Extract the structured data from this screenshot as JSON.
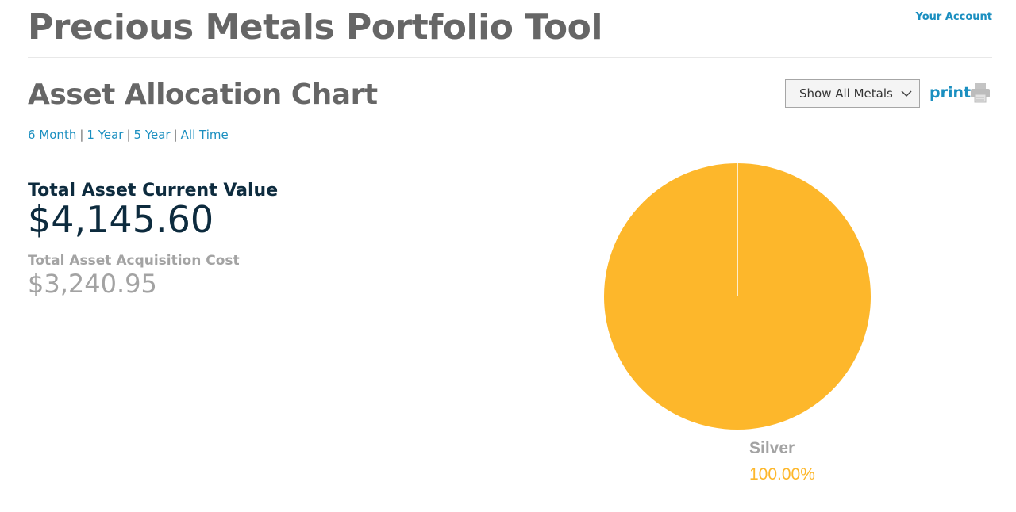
{
  "header": {
    "title": "Precious Metals Portfolio Tool",
    "account_link": "Your Account"
  },
  "section": {
    "title": "Asset Allocation Chart"
  },
  "time_ranges": [
    "6 Month",
    "1 Year",
    "5 Year",
    "All Time"
  ],
  "filter": {
    "selected": "Show All Metals"
  },
  "print": {
    "label": "print",
    "icon": "printer-icon"
  },
  "summary": {
    "current_value_label": "Total Asset Current Value",
    "current_value": "$4,145.60",
    "acquisition_cost_label": "Total Asset Acquisition Cost",
    "acquisition_cost": "$3,240.95"
  },
  "colors": {
    "link": "#1b8fc0",
    "silver": "#fdb72b",
    "heading": "#666666",
    "value": "#0d2b3e"
  },
  "chart_data": {
    "type": "pie",
    "slices": [
      {
        "label": "Silver",
        "value": 100.0,
        "display": "100.00%",
        "color": "#fdb72b"
      }
    ]
  }
}
